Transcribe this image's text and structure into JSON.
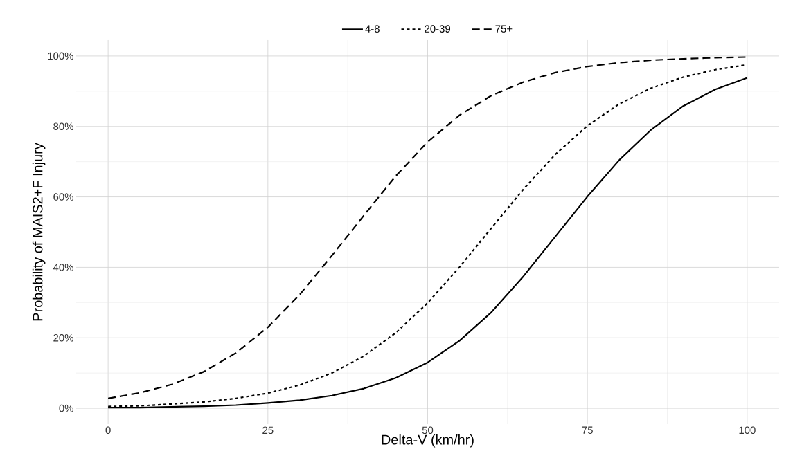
{
  "chart_data": {
    "type": "line",
    "xlabel": "Delta-V (km/hr)",
    "ylabel": "Probability of MAIS2+F Injury",
    "x": [
      0,
      5,
      10,
      15,
      20,
      25,
      30,
      35,
      40,
      45,
      50,
      55,
      60,
      65,
      70,
      75,
      80,
      85,
      90,
      95,
      100
    ],
    "series": [
      {
        "name": "4-8",
        "color": "#000000",
        "line_style": "solid",
        "values": [
          0.2,
          0.2,
          0.4,
          0.6,
          0.9,
          1.5,
          2.3,
          3.6,
          5.6,
          8.6,
          13.0,
          19.2,
          27.3,
          37.5,
          48.8,
          60.1,
          70.5,
          79.1,
          85.8,
          90.5,
          93.8
        ]
      },
      {
        "name": "20-39",
        "color": "#000000",
        "line_style": "dotted",
        "values": [
          0.5,
          0.7,
          1.2,
          1.8,
          2.8,
          4.3,
          6.6,
          10.0,
          14.8,
          21.4,
          29.9,
          40.1,
          51.2,
          62.2,
          72.1,
          80.2,
          86.4,
          90.9,
          94.0,
          96.1,
          97.5
        ]
      },
      {
        "name": "75+",
        "color": "#000000",
        "line_style": "dashed",
        "values": [
          2.8,
          4.4,
          6.8,
          10.4,
          15.7,
          23.0,
          32.3,
          43.3,
          54.7,
          65.9,
          75.6,
          83.2,
          88.8,
          92.6,
          95.3,
          97.0,
          98.1,
          98.8,
          99.2,
          99.5,
          99.7
        ]
      }
    ],
    "xlim": [
      -5,
      105
    ],
    "ylim": [
      -4.5,
      104.5
    ],
    "xticks": [
      0,
      25,
      50,
      75,
      100
    ],
    "yticks": [
      {
        "value": 0,
        "label": "0%"
      },
      {
        "value": 20,
        "label": "20%"
      },
      {
        "value": 40,
        "label": "40%"
      },
      {
        "value": 60,
        "label": "60%"
      },
      {
        "value": 80,
        "label": "80%"
      },
      {
        "value": 100,
        "label": "100%"
      }
    ],
    "grid": true,
    "legend": "top",
    "marker": "none"
  }
}
